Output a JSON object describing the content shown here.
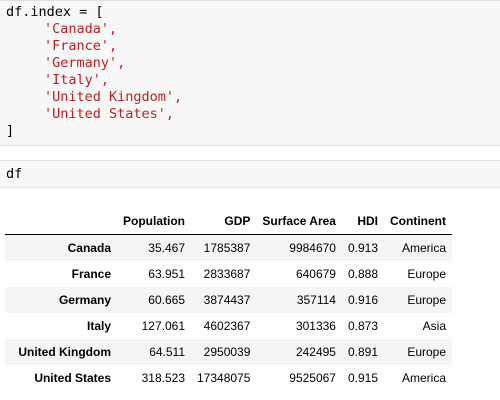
{
  "cell1": {
    "line0": "df.index = [",
    "items": [
      "'Canada',",
      "'France',",
      "'Germany',",
      "'Italy',",
      "'United Kingdom',",
      "'United States',"
    ],
    "close": "]"
  },
  "cell2": {
    "code": "df"
  },
  "table": {
    "columns": [
      "Population",
      "GDP",
      "Surface Area",
      "HDI",
      "Continent"
    ],
    "rows": [
      {
        "index": "Canada",
        "population": "35.467",
        "gdp": "1785387",
        "surface_area": "9984670",
        "hdi": "0.913",
        "continent": "America"
      },
      {
        "index": "France",
        "population": "63.951",
        "gdp": "2833687",
        "surface_area": "640679",
        "hdi": "0.888",
        "continent": "Europe"
      },
      {
        "index": "Germany",
        "population": "60.665",
        "gdp": "3874437",
        "surface_area": "357114",
        "hdi": "0.916",
        "continent": "Europe"
      },
      {
        "index": "Italy",
        "population": "127.061",
        "gdp": "4602367",
        "surface_area": "301336",
        "hdi": "0.873",
        "continent": "Asia"
      },
      {
        "index": "United Kingdom",
        "population": "64.511",
        "gdp": "2950039",
        "surface_area": "242495",
        "hdi": "0.891",
        "continent": "Europe"
      },
      {
        "index": "United States",
        "population": "318.523",
        "gdp": "17348075",
        "surface_area": "9525067",
        "hdi": "0.915",
        "continent": "America"
      }
    ]
  }
}
